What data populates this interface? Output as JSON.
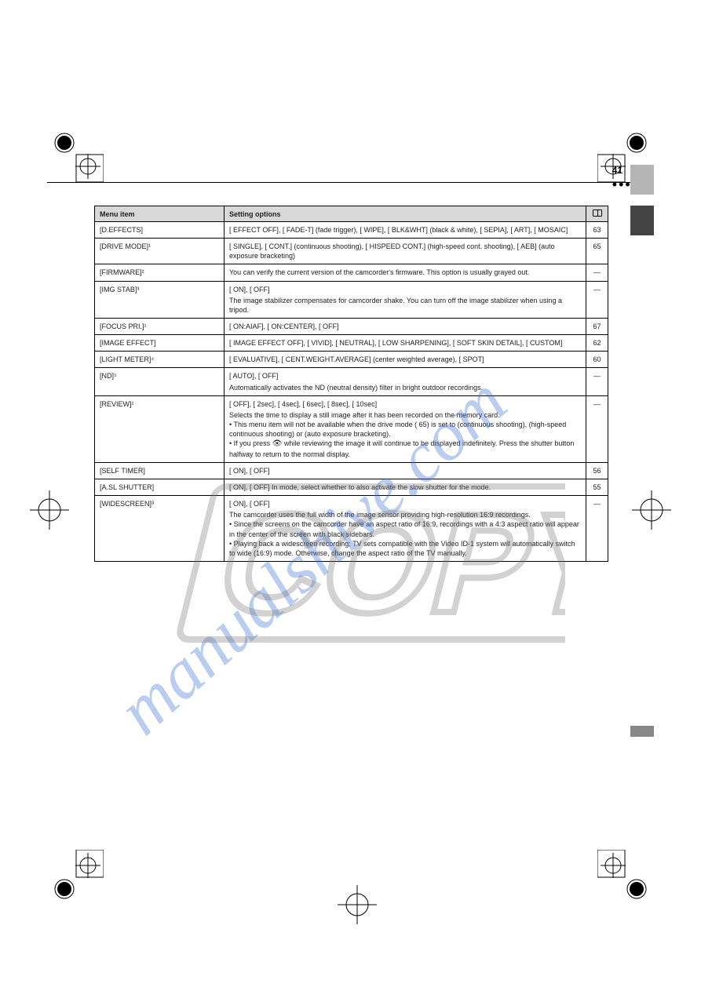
{
  "page_number": "41",
  "header_dots": "••••",
  "table": {
    "columns": [
      "Menu item",
      "Setting options",
      "ref"
    ],
    "ref_icon": "book",
    "rows": [
      {
        "label": "[D.EFFECTS]",
        "value": "[   EFFECT OFF], [   FADE-T] (fade trigger), [   WIPE], [   BLK&WHT] (black & white), [   SEPIA], [   ART], [   MOSAIC]",
        "ref": "63"
      },
      {
        "label": "[DRIVE MODE]¹",
        "value": "[   SINGLE], [   CONT.] (continuous shooting), [   HISPEED CONT.] (high-speed cont. shooting), [   AEB] (auto exposure bracketing)",
        "ref": "65"
      },
      {
        "label": "[FIRMWARE]²",
        "value": "You can verify the current version of the camcorder's firmware. This option is usually grayed out.",
        "ref": "—"
      },
      {
        "label": "[IMG STAB]³",
        "value": "[   ON], [   OFF]",
        "ref": "—",
        "note": "The image stabilizer compensates for camcorder shake. You can turn off the image stabilizer when using a tripod."
      },
      {
        "label": "[FOCUS PRI.]¹",
        "value": "[   ON:AIAF], [   ON:CENTER], [   OFF]",
        "ref": "67"
      },
      {
        "label": "[IMAGE EFFECT]",
        "value": "[   IMAGE EFFECT OFF], [   VIVID], [   NEUTRAL], [   LOW SHARPENING], [   SOFT SKIN DETAIL], [   CUSTOM]",
        "ref": "62"
      },
      {
        "label": "[LIGHT METER]⁴",
        "value": "[   EVALUATIVE], [   CENT.WEIGHT.AVERAGE] (center weighted average), [   SPOT]",
        "ref": "60"
      },
      {
        "label": "[ND]⁵",
        "value": "[   AUTO], [   OFF]",
        "ref": "—",
        "note": "Automatically activates the ND (neutral density) filter in bright outdoor recordings."
      },
      {
        "label": "[REVIEW]¹",
        "value": "[   OFF], [   2sec], [   4sec], [   6sec], [   8sec], [   10sec]",
        "ref": "—",
        "note": "Selects the time to display a still image after it has been recorded on the memory card.\n• This menu item will not be available when the drive mode (   65) is set to   (continuous shooting),   (high-speed continuous shooting) or   (auto exposure bracketing).\n• If you press   while reviewing the image it will continue to be displayed indefinitely. Press the shutter button halfway to return to the normal display."
      },
      {
        "label": "[SELF TIMER]",
        "value": "[   ON], [   OFF]",
        "ref": "56"
      },
      {
        "label": "[A.SL SHUTTER]",
        "value": "[   ON], [   OFF]\nIn   mode, select whether to also activate the slow shutter for the   mode.",
        "ref": "55"
      },
      {
        "label": "[WIDESCREEN]³",
        "value": "[   ON], [   OFF]",
        "ref": "—",
        "note": "The camcorder uses the full width of the image sensor providing high-resolution 16:9 recordings.\n• Since the screens on the camcorder have an aspect ratio of 16:9, recordings with a 4:3 aspect ratio will appear in the center of the screen with black sidebars.\n• Playing back a widescreen recording: TV sets compatible with the Video ID-1 system will automatically switch to wide (16:9) mode. Otherwise, change the aspect ratio of the TV manually."
      }
    ]
  },
  "watermark_url": "manualshive.com",
  "watermark_copy": "COPY"
}
